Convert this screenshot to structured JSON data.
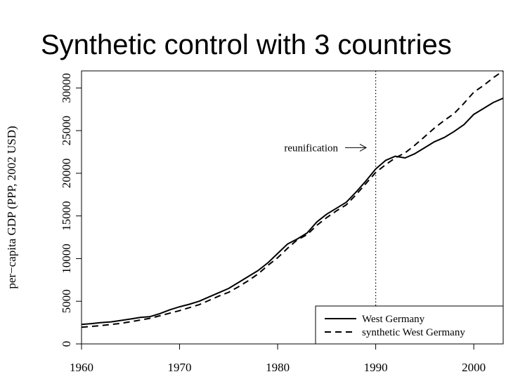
{
  "slide": {
    "title": "Synthetic control with 3 countries"
  },
  "chart_data": {
    "type": "line",
    "title": "",
    "xlabel": "",
    "ylabel": "per−capita GDP (PPP, 2002 USD)",
    "xlim": [
      1960,
      2003
    ],
    "ylim": [
      0,
      32000
    ],
    "x_ticks": [
      1960,
      1970,
      1980,
      1990,
      2000
    ],
    "y_ticks": [
      0,
      5000,
      10000,
      15000,
      20000,
      25000,
      30000
    ],
    "x_tick_labels": [
      "1960",
      "1970",
      "1980",
      "1990",
      "2000"
    ],
    "y_tick_labels": [
      "0",
      "5000",
      "10000",
      "15000",
      "20000",
      "25000",
      "30000"
    ],
    "vline": {
      "x": 1990,
      "style": "dotted"
    },
    "annotation": {
      "text": "reunification",
      "x": 1990,
      "y": 23000,
      "arrow": "right"
    },
    "legend": {
      "position": "bottom-right",
      "entries": [
        "West Germany",
        "synthetic West Germany"
      ]
    },
    "series": [
      {
        "name": "West Germany",
        "style": "solid",
        "x": [
          1960,
          1961,
          1962,
          1963,
          1964,
          1965,
          1966,
          1967,
          1968,
          1969,
          1970,
          1971,
          1972,
          1973,
          1974,
          1975,
          1976,
          1977,
          1978,
          1979,
          1980,
          1981,
          1982,
          1983,
          1984,
          1985,
          1986,
          1987,
          1988,
          1989,
          1990,
          1991,
          1992,
          1993,
          1994,
          1995,
          1996,
          1997,
          1998,
          1999,
          2000,
          2001,
          2002,
          2003
        ],
        "values": [
          2280,
          2380,
          2500,
          2580,
          2750,
          2920,
          3100,
          3200,
          3550,
          4000,
          4350,
          4650,
          5000,
          5500,
          6000,
          6500,
          7200,
          7900,
          8600,
          9500,
          10600,
          11700,
          12300,
          13000,
          14300,
          15200,
          15900,
          16600,
          17800,
          19100,
          20500,
          21500,
          22000,
          21800,
          22300,
          23000,
          23700,
          24200,
          24900,
          25700,
          26900,
          27600,
          28300,
          28800
        ]
      },
      {
        "name": "synthetic West Germany",
        "style": "dashed",
        "x": [
          1960,
          1961,
          1962,
          1963,
          1964,
          1965,
          1966,
          1967,
          1968,
          1969,
          1970,
          1971,
          1972,
          1973,
          1974,
          1975,
          1976,
          1977,
          1978,
          1979,
          1980,
          1981,
          1982,
          1983,
          1984,
          1985,
          1986,
          1987,
          1988,
          1989,
          1990,
          1991,
          1992,
          1993,
          1994,
          1995,
          1996,
          1997,
          1998,
          1999,
          2000,
          2001,
          2002,
          2003
        ],
        "values": [
          1950,
          2050,
          2150,
          2280,
          2400,
          2600,
          2800,
          3000,
          3300,
          3600,
          3900,
          4250,
          4600,
          5100,
          5600,
          6050,
          6700,
          7400,
          8200,
          9200,
          10100,
          11200,
          12200,
          12800,
          13900,
          14800,
          15600,
          16300,
          17500,
          18800,
          20100,
          21000,
          21800,
          22400,
          23300,
          24300,
          25300,
          26200,
          27000,
          28200,
          29500,
          30300,
          31200,
          32000
        ]
      }
    ]
  }
}
